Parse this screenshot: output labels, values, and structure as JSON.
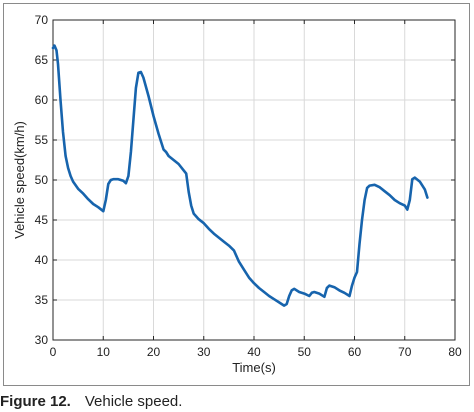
{
  "caption": {
    "figure_label": "Figure 12.",
    "text": "Vehicle speed."
  },
  "colors": {
    "line": "#1764ad",
    "grid": "#d9d9d9",
    "axis": "#262626"
  },
  "chart_data": {
    "type": "line",
    "title": "",
    "xlabel": "Time(s)",
    "ylabel": "Vehicle speed(km/h)",
    "xlim": [
      0,
      80
    ],
    "ylim": [
      30,
      70
    ],
    "xticks": [
      0,
      10,
      20,
      30,
      40,
      50,
      60,
      70,
      80
    ],
    "yticks": [
      30,
      35,
      40,
      45,
      50,
      55,
      60,
      65,
      70
    ],
    "grid": true,
    "series": [
      {
        "x": [
          0,
          0.3,
          0.7,
          1.0,
          1.5,
          2.0,
          2.5,
          3.0,
          3.5,
          4.0,
          5.0,
          6.0,
          7.0,
          8.0,
          9.0,
          10.0,
          10.5,
          11.0,
          11.5,
          12.0,
          13.0,
          14.0,
          14.5,
          15.0,
          15.5,
          16.0,
          16.5,
          17.0,
          17.5,
          18.0,
          19.0,
          20.0,
          21.0,
          22.0,
          22.5,
          23.0,
          24.0,
          25.0,
          26.0,
          26.5,
          27.0,
          27.5,
          28.0,
          29.0,
          30.0,
          31.0,
          32.0,
          33.0,
          34.0,
          35.0,
          36.0,
          37.0,
          38.0,
          39.0,
          40.0,
          41.0,
          42.0,
          43.0,
          44.0,
          45.0,
          46.0,
          46.5,
          47.0,
          47.5,
          48.0,
          49.0,
          50.0,
          51.0,
          51.5,
          52.0,
          53.0,
          54.0,
          54.5,
          55.0,
          56.0,
          57.0,
          58.0,
          59.0,
          59.5,
          60.0,
          60.5,
          61.0,
          61.5,
          62.0,
          62.5,
          63.0,
          64.0,
          65.0,
          66.0,
          67.0,
          68.0,
          69.0,
          70.0,
          70.5,
          71.0,
          71.5,
          72.0,
          73.0,
          74.0,
          74.5
        ],
        "y": [
          66.5,
          66.8,
          66.2,
          64.5,
          60.0,
          56.0,
          53.0,
          51.5,
          50.5,
          49.8,
          48.9,
          48.3,
          47.6,
          47.0,
          46.6,
          46.1,
          47.5,
          49.5,
          50.0,
          50.1,
          50.1,
          49.9,
          49.6,
          50.5,
          53.5,
          57.5,
          61.5,
          63.4,
          63.5,
          62.8,
          60.5,
          58.0,
          55.8,
          53.8,
          53.5,
          53.0,
          52.5,
          52.0,
          51.2,
          50.8,
          48.5,
          46.8,
          45.8,
          45.1,
          44.6,
          43.9,
          43.3,
          42.8,
          42.3,
          41.8,
          41.2,
          39.8,
          38.8,
          37.8,
          37.1,
          36.5,
          36.0,
          35.5,
          35.1,
          34.7,
          34.3,
          34.5,
          35.5,
          36.2,
          36.4,
          36.0,
          35.8,
          35.5,
          35.9,
          36.0,
          35.8,
          35.4,
          36.5,
          36.8,
          36.6,
          36.2,
          35.9,
          35.5,
          36.8,
          37.8,
          38.5,
          42.0,
          45.0,
          47.5,
          49.0,
          49.3,
          49.4,
          49.1,
          48.6,
          48.1,
          47.5,
          47.1,
          46.8,
          46.3,
          47.5,
          50.1,
          50.3,
          49.8,
          48.8,
          47.8
        ]
      }
    ]
  }
}
